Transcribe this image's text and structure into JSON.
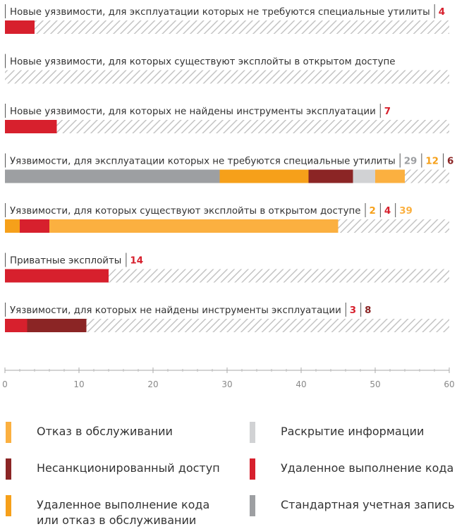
{
  "chart_data": {
    "type": "bar",
    "orientation": "horizontal",
    "stacked": true,
    "xlim": [
      0,
      60
    ],
    "xticks": [
      0,
      10,
      20,
      30,
      40,
      50,
      60
    ],
    "grid": false,
    "background_pattern": "hatched",
    "categories": [
      "Новые уязвимости, для эксплуатации которых не требуются специальные утилиты",
      "Новые уязвимости, для которых существуют эксплойты в открытом доступе",
      "Новые уязвимости, для которых не найдены инструменты эксплуатации",
      "Уязвимости, для эксплуатации которых не требуются специальные утилиты",
      "Уязвимости, для которых существуют эксплойты в открытом доступе",
      "Приватные эксплойты",
      "Уязвимости, для которых не найдены инструменты эксплуатации"
    ],
    "series": [
      {
        "name": "Стандартная учетная запись",
        "color": "#9d9fa2",
        "values": [
          0,
          0,
          0,
          29,
          0,
          0,
          0
        ]
      },
      {
        "name": "Удаленное выполнение кода или отказ в обслуживании",
        "color": "#f6a01a",
        "values": [
          0,
          0,
          0,
          12,
          2,
          0,
          0
        ]
      },
      {
        "name": "Несанкционированный доступ",
        "color": "#8b2525",
        "values": [
          0,
          0,
          0,
          6,
          0,
          0,
          8
        ]
      },
      {
        "name": "Удаленное выполнение кода",
        "color": "#d7202d",
        "values": [
          4,
          0,
          7,
          0,
          4,
          14,
          3
        ]
      },
      {
        "name": "Раскрытие информации",
        "color": "#d1d2d4",
        "values": [
          0,
          0,
          0,
          3,
          0,
          0,
          0
        ]
      },
      {
        "name": "Отказ в обслуживании",
        "color": "#fbb040",
        "values": [
          0,
          0,
          0,
          4,
          39,
          0,
          0
        ]
      }
    ],
    "segment_order": [
      [
        "Удаленное выполнение кода"
      ],
      [],
      [
        "Удаленное выполнение кода"
      ],
      [
        "Стандартная учетная запись",
        "Удаленное выполнение кода или отказ в обслуживании",
        "Несанкционированный доступ",
        "Раскрытие информации",
        "Отказ в обслуживании"
      ],
      [
        "Удаленное выполнение кода или отказ в обслуживании",
        "Удаленное выполнение кода",
        "Отказ в обслуживании"
      ],
      [
        "Удаленное выполнение кода"
      ],
      [
        "Удаленное выполнение кода",
        "Несанкционированный доступ"
      ]
    ]
  },
  "legend": [
    {
      "label": "Отказ в обслуживании",
      "color": "#fbb040"
    },
    {
      "label": "Раскрытие информации",
      "color": "#d1d2d4"
    },
    {
      "label": "Несанкционированный доступ",
      "color": "#8b2525"
    },
    {
      "label": "Удаленное выполнение кода",
      "color": "#d7202d"
    },
    {
      "label": "Удаленное выполнение кода\nили отказ в обслуживании",
      "color": "#f6a01a"
    },
    {
      "label": "Стандартная учетная запись",
      "color": "#9d9fa2"
    }
  ]
}
